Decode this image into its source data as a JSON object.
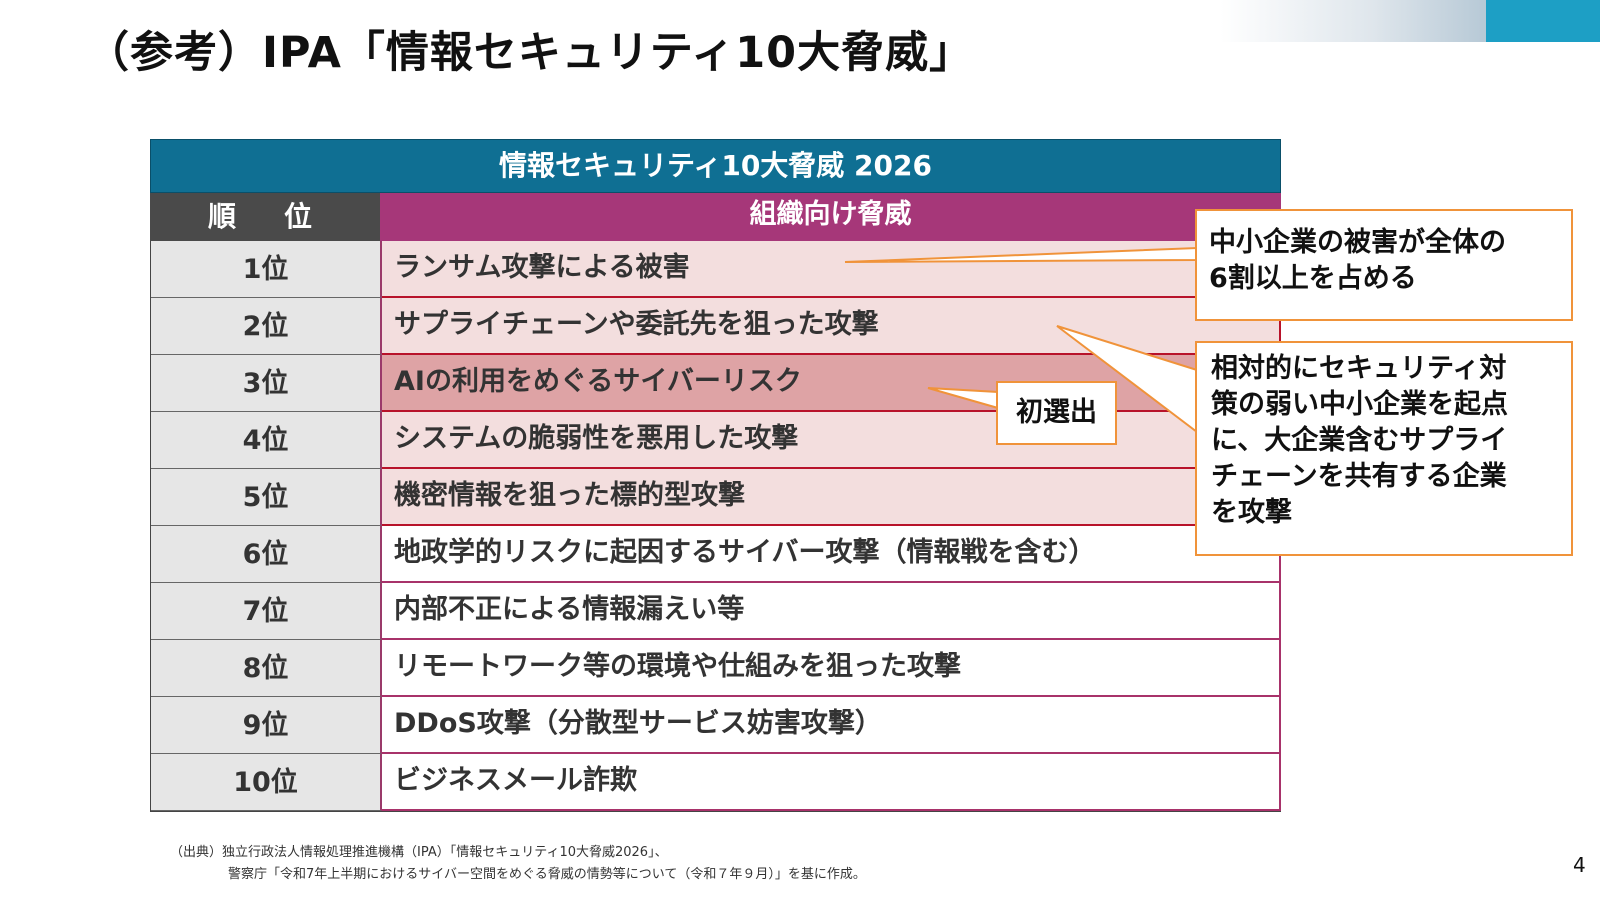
{
  "slide": {
    "title": "（参考）IPA「情報セキュリティ10大脅威」",
    "page_number": "4",
    "accent_color": "#1d9fc5"
  },
  "table": {
    "title": "情報セキュリティ10大脅威 2026",
    "rank_header": "順　位",
    "threat_header": "組織向け脅威",
    "header_color": "#0f6f93",
    "threat_header_color": "#a63779",
    "rows": [
      {
        "rank": "1位",
        "threat": "ランサム攻撃による被害"
      },
      {
        "rank": "2位",
        "threat": "サプライチェーンや委託先を狙った攻撃"
      },
      {
        "rank": "3位",
        "threat": "AIの利用をめぐるサイバーリスク"
      },
      {
        "rank": "4位",
        "threat": "システムの脆弱性を悪用した攻撃"
      },
      {
        "rank": "5位",
        "threat": "機密情報を狙った標的型攻撃"
      },
      {
        "rank": "6位",
        "threat": "地政学的リスクに起因するサイバー攻撃（情報戦を含む）"
      },
      {
        "rank": "7位",
        "threat": "内部不正による情報漏えい等"
      },
      {
        "rank": "8位",
        "threat": "リモートワーク等の環境や仕組みを狙った攻撃"
      },
      {
        "rank": "9位",
        "threat": "DDoS攻撃（分散型サービス妨害攻撃）"
      },
      {
        "rank": "10位",
        "threat": "ビジネスメール詐欺"
      }
    ]
  },
  "callouts": {
    "ransom_note": [
      "中小企業の被害が全体の",
      "6割以上を占める"
    ],
    "supply_chain_note": [
      "相対的にセキュリティ対",
      "策の弱い中小企業を起点",
      "に、大企業含むサプライ",
      "チェーンを共有する企業",
      "を攻撃"
    ],
    "first_selection": "初選出"
  },
  "source": {
    "line1": "（出典）独立行政法人情報処理推進機構（IPA）「情報セキュリティ10大脅威2026」、",
    "line2": "警察庁「令和7年上半期におけるサイバー空間をめぐる脅威の情勢等について（令和７年９月）」を基に作成。"
  }
}
